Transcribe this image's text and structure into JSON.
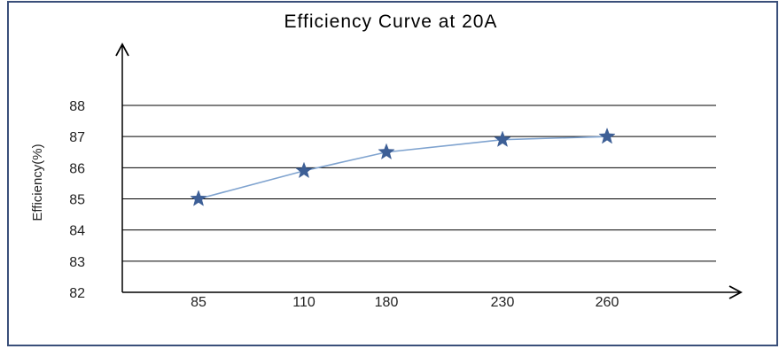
{
  "chart_data": {
    "type": "line",
    "title": "Efficiency Curve at 20A",
    "xlabel": "",
    "ylabel": "Efficiency(%)",
    "categories": [
      "85",
      "110",
      "180",
      "230",
      "260"
    ],
    "series": [
      {
        "values": [
          85.0,
          85.9,
          86.5,
          86.9,
          87.0
        ]
      }
    ],
    "ylim": [
      82,
      88
    ],
    "yticks": [
      "82",
      "83",
      "84",
      "85",
      "86",
      "87",
      "88"
    ],
    "grid": true,
    "marker": "star",
    "legend": "none"
  },
  "colors": {
    "frame": "#3a4f7a",
    "line": "#7fa3cf",
    "marker": "#3d5f96",
    "grid": "#000000",
    "axis": "#000000"
  }
}
